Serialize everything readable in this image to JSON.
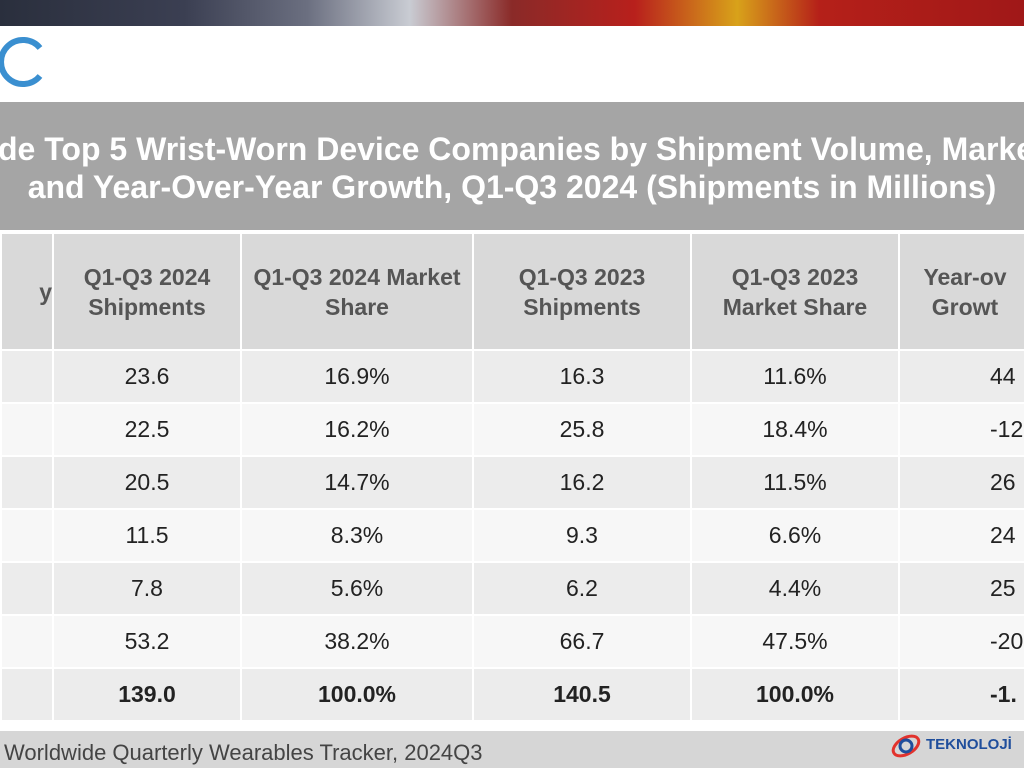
{
  "title": [
    "de Top 5 Wrist-Worn Device Companies by Shipment Volume, Marke",
    "and Year-Over-Year Growth, Q1-Q3 2024 (Shipments in Millions)"
  ],
  "table": {
    "header": [
      "y",
      "Q1-Q3 2024 Shipments",
      "Q1-Q3 2024 Market Share",
      "Q1-Q3 2023 Shipments",
      "Q1-Q3 2023 Market Share",
      "Year-ov Growt"
    ],
    "rows": [
      [
        "23.6",
        "16.9%",
        "16.3",
        "11.6%",
        "44"
      ],
      [
        "22.5",
        "16.2%",
        "25.8",
        "18.4%",
        "-12"
      ],
      [
        "20.5",
        "14.7%",
        "16.2",
        "11.5%",
        "26"
      ],
      [
        "11.5",
        "8.3%",
        "9.3",
        "6.6%",
        "24"
      ],
      [
        "7.8",
        "5.6%",
        "6.2",
        "4.4%",
        "25"
      ],
      [
        "53.2",
        "38.2%",
        "66.7",
        "47.5%",
        "-20"
      ],
      [
        "139.0",
        "100.0%",
        "140.5",
        "100.0%",
        "-1."
      ]
    ]
  },
  "footer": "Worldwide Quarterly Wearables Tracker, 2024Q3",
  "watermark": "TEKNOLOJİ"
}
